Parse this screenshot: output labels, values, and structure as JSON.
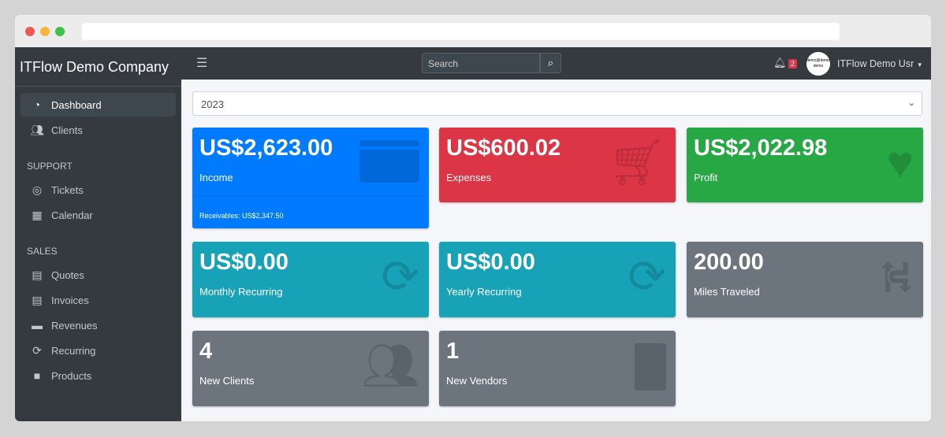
{
  "sidebar": {
    "brand": "ITFlow Demo Company",
    "items": [
      {
        "label": "Dashboard",
        "icon": "tachometer-icon"
      },
      {
        "label": "Clients",
        "icon": "users-icon"
      }
    ],
    "support_header": "SUPPORT",
    "support": [
      {
        "label": "Tickets",
        "icon": "life-ring-icon"
      },
      {
        "label": "Calendar",
        "icon": "calendar-icon"
      }
    ],
    "sales_header": "SALES",
    "sales": [
      {
        "label": "Quotes"
      },
      {
        "label": "Invoices"
      },
      {
        "label": "Revenues"
      },
      {
        "label": "Recurring"
      },
      {
        "label": "Products"
      }
    ]
  },
  "topnav": {
    "search_placeholder": "Search",
    "notifications": "2",
    "avatar_text": "demo@demo demo",
    "user": "ITFlow Demo Usr"
  },
  "year": "2023",
  "cards": [
    {
      "value": "US$2,623.00",
      "label": "Income",
      "footer": "Receivables: US$2,347.50",
      "color": "#007bff"
    },
    {
      "value": "US$600.02",
      "label": "Expenses",
      "color": "#dc3545"
    },
    {
      "value": "US$2,022.98",
      "label": "Profit",
      "color": "#28a745"
    },
    {
      "value": "US$0.00",
      "label": "Monthly Recurring",
      "color": "#17a2b8"
    },
    {
      "value": "US$0.00",
      "label": "Yearly Recurring",
      "color": "#17a2b8"
    },
    {
      "value": "200.00",
      "label": "Miles Traveled",
      "color": "#6c757d"
    },
    {
      "value": "4",
      "label": "New Clients",
      "color": "#6c757d"
    },
    {
      "value": "1",
      "label": "New Vendors",
      "color": "#6c757d"
    }
  ]
}
